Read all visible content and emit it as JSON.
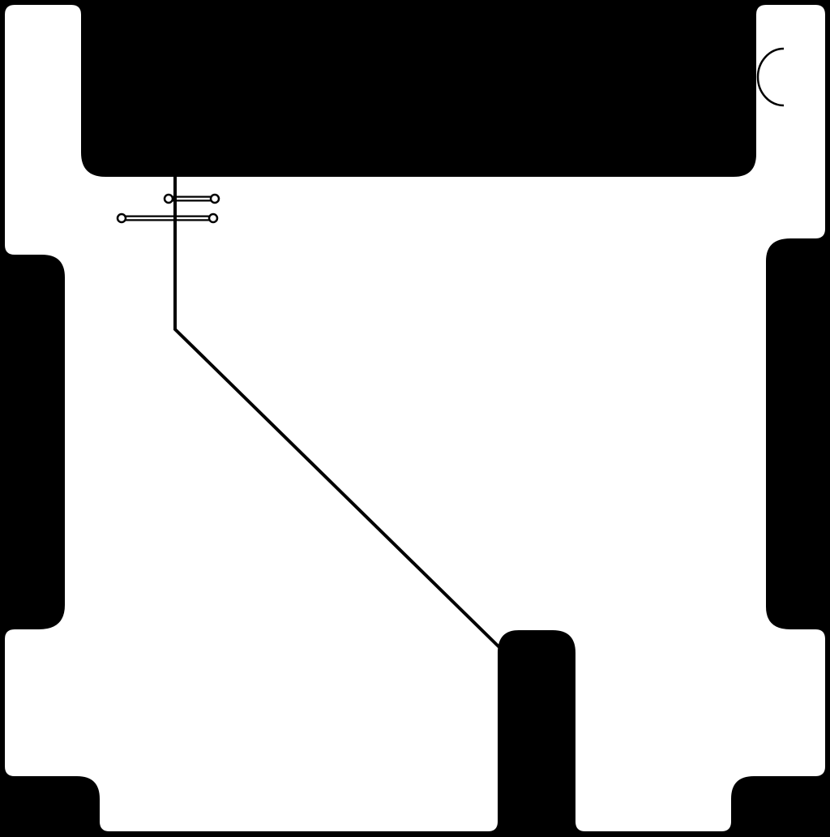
{
  "diagram": {
    "colors": {
      "background": "#000000",
      "floor": "#ffffff",
      "line": "#000000",
      "marker_fill": "#ffffff"
    },
    "elements": [
      "floor-plan-area",
      "top-black-block",
      "door-arc-symbol",
      "diagonal-wire-line",
      "connector-marker-upper",
      "connector-marker-lower",
      "center-bottom-pillar"
    ]
  }
}
